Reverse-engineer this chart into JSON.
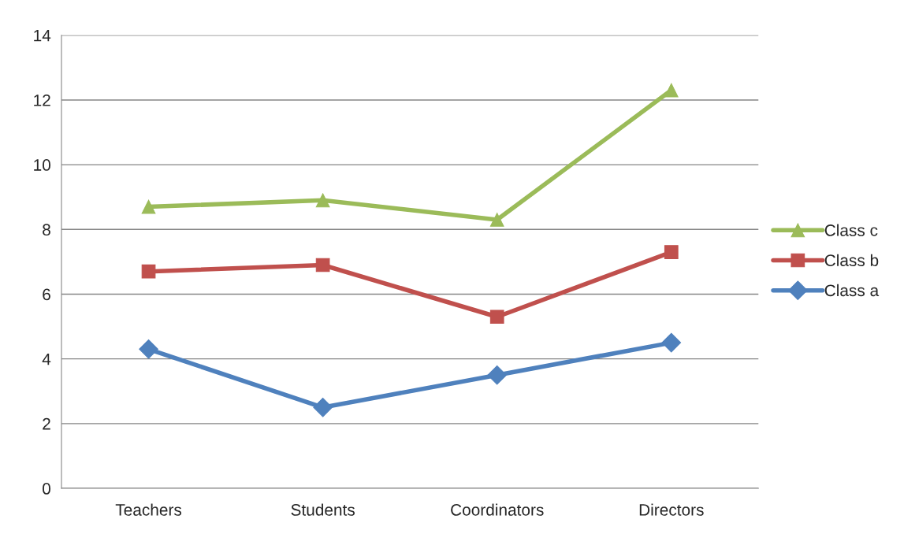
{
  "chart_data": {
    "type": "line",
    "categories": [
      "Teachers",
      "Students",
      "Coordinators",
      "Directors"
    ],
    "series": [
      {
        "name": "Class c",
        "color": "#9bbb59",
        "marker": "triangle",
        "values": [
          8.7,
          8.9,
          8.3,
          12.3
        ]
      },
      {
        "name": "Class b",
        "color": "#c0504d",
        "marker": "square",
        "values": [
          6.7,
          6.9,
          5.3,
          7.3
        ]
      },
      {
        "name": "Class a",
        "color": "#4f81bd",
        "marker": "diamond",
        "values": [
          4.3,
          2.5,
          3.5,
          4.5
        ]
      }
    ],
    "ylim": [
      0,
      14
    ],
    "yticks": [
      0,
      2,
      4,
      6,
      8,
      10,
      12,
      14
    ],
    "grid": "y",
    "legend": "right",
    "line_style": "solid"
  }
}
